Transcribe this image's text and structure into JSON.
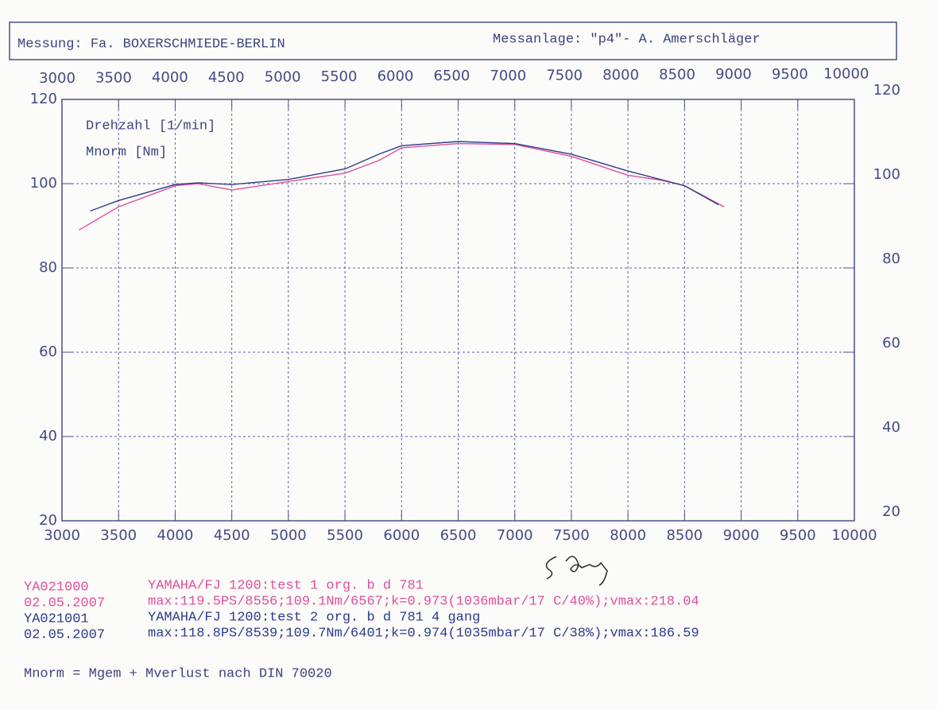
{
  "header": {
    "left": "Messung: Fa. BOXERSCHMIEDE-BERLIN",
    "right": "Messanlage: \"p4\"- A. Amerschläger"
  },
  "chart_data": {
    "type": "line",
    "legend_lines": [
      "Drehzahl [1/min]",
      "Mnorm [Nm]"
    ],
    "xlim": [
      3000,
      10000
    ],
    "xticks": [
      3000,
      3500,
      4000,
      4500,
      5000,
      5500,
      6000,
      6500,
      7000,
      7500,
      8000,
      8500,
      9000,
      9500,
      10000
    ],
    "ylim": [
      20,
      120
    ],
    "yticks": [
      20,
      40,
      60,
      80,
      100,
      120
    ],
    "grid": true,
    "series": [
      {
        "name": "YA021000",
        "color": "#e0509a",
        "date": "02.05.2007",
        "description": "YAMAHA/FJ  1200:test 1 org. b d 781",
        "stats": "max:119.5PS/8556;109.1Nm/6567;k=0.973(1036mbar/17 C/40%);vmax:218.04",
        "x": [
          3150,
          3500,
          4000,
          4200,
          4500,
          5000,
          5500,
          5800,
          6000,
          6500,
          7000,
          7500,
          8000,
          8300,
          8500,
          8850
        ],
        "values": [
          89,
          94.5,
          99.5,
          100,
          98.5,
          100.5,
          102.5,
          105.5,
          108.5,
          109.5,
          109.3,
          106.5,
          102,
          100.8,
          99.5,
          94.5
        ]
      },
      {
        "name": "YA021001",
        "color": "#2f3a8c",
        "date": "02.05.2007",
        "description": "YAMAHA/FJ  1200:test 2 org. b d 781 4 gang",
        "stats": "max:118.8PS/8539;109.7Nm/6401;k=0.974(1035mbar/17 C/38%);vmax:186.59",
        "x": [
          3250,
          3500,
          4000,
          4200,
          4500,
          5000,
          5500,
          5800,
          6000,
          6500,
          7000,
          7500,
          8000,
          8500,
          8800
        ],
        "values": [
          93.5,
          96,
          99.8,
          100.2,
          99.8,
          101,
          103.5,
          107,
          109,
          110,
          109.5,
          107,
          103,
          99.5,
          95
        ]
      }
    ]
  },
  "footnote": "Mnorm = Mgem + Mverlust nach DIN 70020"
}
